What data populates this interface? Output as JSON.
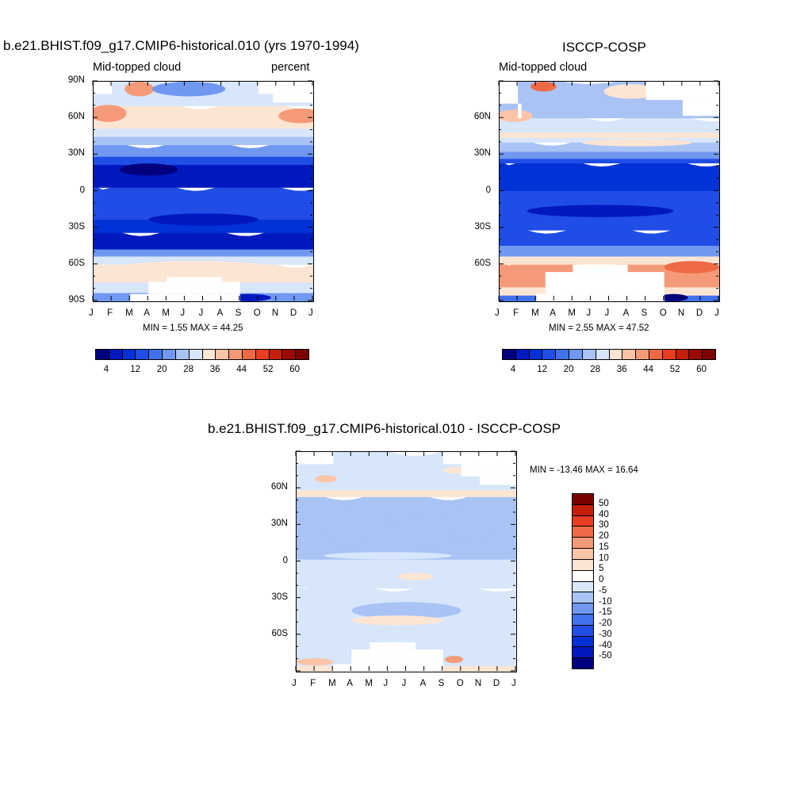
{
  "colors": {
    "seq": [
      "#00007f",
      "#0019bf",
      "#0032d8",
      "#1f4de6",
      "#4171ec",
      "#7098f0",
      "#a9c3f5",
      "#d7e6fb",
      "#fde5d4",
      "#fbc4a8",
      "#f59a78",
      "#ee6a45",
      "#e83d1f",
      "#c41f0a",
      "#9b0a02",
      "#7a0000"
    ],
    "diff": [
      "#00007f",
      "#0019bf",
      "#0032d8",
      "#1f4de6",
      "#4171ec",
      "#7098f0",
      "#a9c3f5",
      "#d7e6fb",
      "#ffffff",
      "#fde5d4",
      "#fbc4a8",
      "#f59a78",
      "#ee6a45",
      "#e83d1f",
      "#c41f0a",
      "#7a0000"
    ]
  },
  "months": [
    "J",
    "F",
    "M",
    "A",
    "M",
    "J",
    "J",
    "A",
    "S",
    "O",
    "N",
    "D",
    "J"
  ],
  "chart_data": [
    {
      "type": "heatmap",
      "title": "b.e21.BHIST.f09_g17.CMIP6-historical.010 (yrs 1970-1994)",
      "left_label": "Mid-topped cloud",
      "right_label": "percent",
      "xlabel": "",
      "ylabel": "",
      "y_ticks": [
        "90N",
        "60N",
        "30N",
        "0",
        "30S",
        "60S",
        "90S"
      ],
      "ylim": [
        -90,
        90
      ],
      "stats": "MIN =   1.55 MAX =  44.25",
      "colorbar_ticks": [
        "4",
        "12",
        "20",
        "28",
        "36",
        "44",
        "52",
        "60"
      ],
      "bands": [
        {
          "from": -90,
          "to": -80,
          "level": 5
        },
        {
          "from": -80,
          "to": -70,
          "level": 7
        },
        {
          "from": -70,
          "to": -58,
          "level": 8
        },
        {
          "from": -58,
          "to": -50,
          "level": 7
        },
        {
          "from": -50,
          "to": -43,
          "level": 5
        },
        {
          "from": -43,
          "to": -32,
          "level": 1
        },
        {
          "from": -32,
          "to": -20,
          "level": 2
        },
        {
          "from": -20,
          "to": -8,
          "level": 3
        },
        {
          "from": -8,
          "to": 5,
          "level": 3
        },
        {
          "from": 5,
          "to": 25,
          "level": 1
        },
        {
          "from": 25,
          "to": 33,
          "level": 3
        },
        {
          "from": 33,
          "to": 40,
          "level": 5
        },
        {
          "from": 40,
          "to": 48,
          "level": 6
        },
        {
          "from": 48,
          "to": 56,
          "level": 7
        },
        {
          "from": 56,
          "to": 72,
          "level": 8
        },
        {
          "from": 72,
          "to": 90,
          "level": 7
        }
      ],
      "blobs": [
        {
          "lat": 18,
          "month": 3.0,
          "dlat": 5,
          "dmonth": 1.6,
          "level": 0
        },
        {
          "lat": -23,
          "month": 6.0,
          "dlat": 5,
          "dmonth": 3.0,
          "level": 1
        },
        {
          "lat": 64,
          "month": 0.8,
          "dlat": 7,
          "dmonth": 1.0,
          "level": 10
        },
        {
          "lat": 62,
          "month": 11.3,
          "dlat": 6,
          "dmonth": 1.2,
          "level": 10
        },
        {
          "lat": 84,
          "month": 2.5,
          "dlat": 6,
          "dmonth": 0.8,
          "level": 10
        },
        {
          "lat": 84,
          "month": 5.2,
          "dlat": 6,
          "dmonth": 2.0,
          "level": 5
        },
        {
          "lat": -62,
          "month": 5.5,
          "dlat": 5,
          "dmonth": 4.0,
          "level": 8
        },
        {
          "lat": -87,
          "month": 8.5,
          "dlat": 3,
          "dmonth": 1.2,
          "level": 1
        }
      ],
      "missing": [
        {
          "lat_from": 80,
          "lat_to": 90,
          "month_from": 0,
          "month_to": 1
        },
        {
          "lat_from": 80,
          "lat_to": 90,
          "month_from": 9,
          "month_to": 12
        },
        {
          "lat_from": 73,
          "lat_to": 80,
          "month_from": 9.8,
          "month_to": 12
        },
        {
          "lat_from": -90,
          "lat_to": -84,
          "month_from": 2,
          "month_to": 8
        },
        {
          "lat_from": -84,
          "lat_to": -74,
          "month_from": 3,
          "month_to": 8
        },
        {
          "lat_from": -74,
          "lat_to": -70,
          "month_from": 4,
          "month_to": 7
        }
      ]
    },
    {
      "type": "heatmap",
      "title": "ISCCP-COSP",
      "left_label": "Mid-topped cloud",
      "xlabel": "",
      "ylabel": "",
      "y_ticks": [
        "60N",
        "30N",
        "0",
        "30S",
        "60S"
      ],
      "ylim": [
        -90,
        90
      ],
      "stats": "MIN =   2.55 MAX =  47.52",
      "colorbar_ticks": [
        "4",
        "12",
        "20",
        "28",
        "36",
        "44",
        "52",
        "60"
      ],
      "bands": [
        {
          "from": -90,
          "to": -82,
          "level": 4
        },
        {
          "from": -82,
          "to": -74,
          "level": 8
        },
        {
          "from": -74,
          "to": -58,
          "level": 10
        },
        {
          "from": -58,
          "to": -50,
          "level": 8
        },
        {
          "from": -50,
          "to": -40,
          "level": 5
        },
        {
          "from": -40,
          "to": -30,
          "level": 3
        },
        {
          "from": -30,
          "to": -5,
          "level": 3
        },
        {
          "from": -5,
          "to": 5,
          "level": 3
        },
        {
          "from": 5,
          "to": 25,
          "level": 2
        },
        {
          "from": 25,
          "to": 30,
          "level": 3
        },
        {
          "from": 30,
          "to": 37,
          "level": 5
        },
        {
          "from": 37,
          "to": 42,
          "level": 6
        },
        {
          "from": 42,
          "to": 47,
          "level": 7
        },
        {
          "from": 47,
          "to": 53,
          "level": 8
        },
        {
          "from": 53,
          "to": 62,
          "level": 7
        },
        {
          "from": 62,
          "to": 90,
          "level": 6
        }
      ],
      "blobs": [
        {
          "lat": -16,
          "month": 5.5,
          "dlat": 5,
          "dmonth": 4.0,
          "level": 1
        },
        {
          "lat": -87,
          "month": 9.5,
          "dlat": 3,
          "dmonth": 0.8,
          "level": 0
        },
        {
          "lat": 62,
          "month": 0.8,
          "dlat": 5,
          "dmonth": 1.0,
          "level": 9
        },
        {
          "lat": 86,
          "month": 2.4,
          "dlat": 4,
          "dmonth": 0.7,
          "level": 11
        },
        {
          "lat": 82,
          "month": 7.2,
          "dlat": 6,
          "dmonth": 1.5,
          "level": 8
        },
        {
          "lat": 40,
          "month": 7.5,
          "dlat": 3,
          "dmonth": 3.0,
          "level": 8
        },
        {
          "lat": -62,
          "month": 10.5,
          "dlat": 5,
          "dmonth": 1.5,
          "level": 11
        }
      ],
      "missing": [
        {
          "lat_from": 72,
          "lat_to": 90,
          "month_from": 0,
          "month_to": 1
        },
        {
          "lat_from": 60,
          "lat_to": 72,
          "month_from": 1,
          "month_to": 1.2
        },
        {
          "lat_from": 75,
          "lat_to": 90,
          "month_from": 8,
          "month_to": 12
        },
        {
          "lat_from": 62,
          "lat_to": 75,
          "month_from": 10,
          "month_to": 12
        },
        {
          "lat_from": -90,
          "lat_to": -84,
          "month_from": 2,
          "month_to": 9
        },
        {
          "lat_from": -84,
          "lat_to": -66,
          "month_from": 2.5,
          "month_to": 9
        },
        {
          "lat_from": -66,
          "lat_to": -60,
          "month_from": 4,
          "month_to": 7
        }
      ]
    },
    {
      "type": "heatmap",
      "title": "b.e21.BHIST.f09_g17.CMIP6-historical.010 - ISCCP-COSP",
      "xlabel": "",
      "ylabel": "",
      "y_ticks": [
        "60N",
        "30N",
        "0",
        "30S",
        "60S"
      ],
      "ylim": [
        -90,
        90
      ],
      "stats": "MIN = -13.46 MAX =  16.64",
      "colorbar_ticks": [
        "50",
        "40",
        "30",
        "20",
        "15",
        "10",
        "5",
        "0",
        "-5",
        "-10",
        "-15",
        "-20",
        "-30",
        "-40",
        "-50"
      ],
      "bands": [
        {
          "from": -90,
          "to": -82,
          "level": 9
        },
        {
          "from": -82,
          "to": -76,
          "level": 7
        },
        {
          "from": -76,
          "to": -20,
          "level": 7
        },
        {
          "from": -20,
          "to": 5,
          "level": 7
        },
        {
          "from": 5,
          "to": 30,
          "level": 6
        },
        {
          "from": 30,
          "to": 55,
          "level": 6
        },
        {
          "from": 55,
          "to": 62,
          "level": 9
        },
        {
          "from": 62,
          "to": 90,
          "level": 7
        }
      ],
      "blobs": [
        {
          "lat": -40,
          "month": 6.0,
          "dlat": 7,
          "dmonth": 3.0,
          "level": 6
        },
        {
          "lat": -28,
          "month": 3.5,
          "dlat": 6,
          "dmonth": 2.0,
          "level": 7
        },
        {
          "lat": -12,
          "month": 6.5,
          "dlat": 3,
          "dmonth": 1.0,
          "level": 9
        },
        {
          "lat": -48,
          "month": 5.5,
          "dlat": 4,
          "dmonth": 2.5,
          "level": 9
        },
        {
          "lat": 5,
          "month": 5.0,
          "dlat": 3,
          "dmonth": 3.5,
          "level": 7
        },
        {
          "lat": 22,
          "month": 6.0,
          "dlat": 6,
          "dmonth": 5.0,
          "level": 6
        },
        {
          "lat": 45,
          "month": 6.0,
          "dlat": 6,
          "dmonth": 3.5,
          "level": 6
        },
        {
          "lat": 68,
          "month": 1.6,
          "dlat": 3,
          "dmonth": 0.6,
          "level": 10
        },
        {
          "lat": 75,
          "month": 9.0,
          "dlat": 3,
          "dmonth": 1.0,
          "level": 9
        },
        {
          "lat": -80,
          "month": 8.6,
          "dlat": 3,
          "dmonth": 0.5,
          "level": 11
        },
        {
          "lat": -82,
          "month": 1.0,
          "dlat": 3,
          "dmonth": 1.0,
          "level": 10
        }
      ],
      "missing": [
        {
          "lat_from": 80,
          "lat_to": 90,
          "month_from": 0,
          "month_to": 2
        },
        {
          "lat_from": 80,
          "lat_to": 90,
          "month_from": 8,
          "month_to": 12
        },
        {
          "lat_from": 70,
          "lat_to": 80,
          "month_from": 9,
          "month_to": 12
        },
        {
          "lat_from": 63,
          "lat_to": 70,
          "month_from": 10,
          "month_to": 12
        },
        {
          "lat_from": -90,
          "lat_to": -84,
          "month_from": 2,
          "month_to": 8
        },
        {
          "lat_from": -84,
          "lat_to": -72,
          "month_from": 3,
          "month_to": 8
        },
        {
          "lat_from": -72,
          "lat_to": -66,
          "month_from": 4,
          "month_to": 6.5
        }
      ]
    }
  ]
}
